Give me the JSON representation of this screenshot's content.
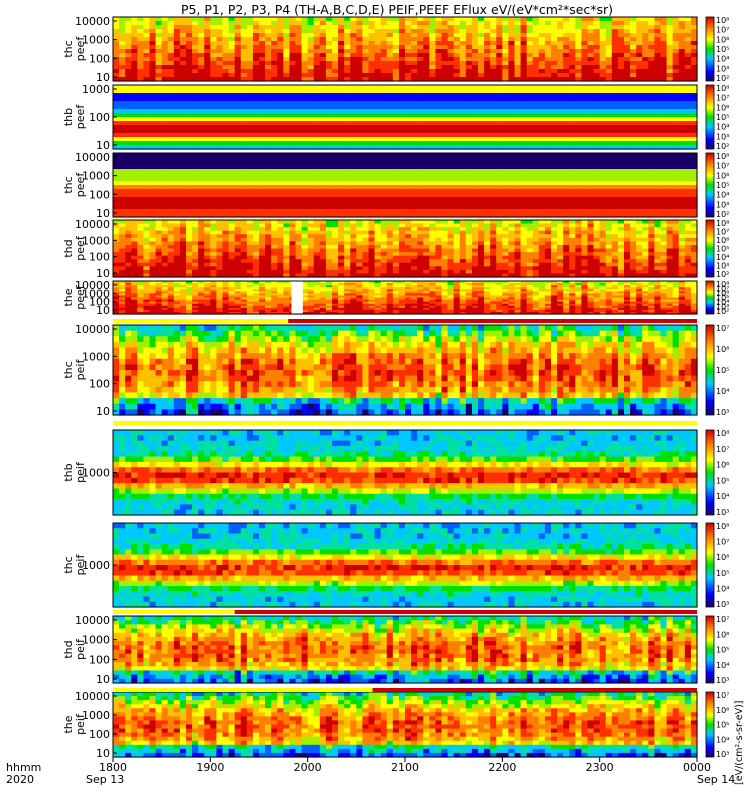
{
  "title": "P5, P1, P2, P3, P4 (TH-A,B,C,D,E) PEIF,PEEF EFlux eV/(eV*cm²*sec*sr)",
  "footer": {
    "row1_label": "hhmm",
    "row2_label": "2020",
    "times": [
      "1800",
      "1900",
      "2000",
      "2100",
      "2200",
      "2300",
      "0000"
    ],
    "start_date": "Sep 13",
    "end_date": "Sep 14"
  },
  "colorbar_caption": "[eV/(cm²-s-sr-eV)]",
  "chart_data": {
    "type": "heatmap",
    "x_range": [
      "2020-09-13 18:00",
      "2020-09-14 00:00"
    ],
    "panels": [
      {
        "id": "thc-peef",
        "ylabel": [
          "thc",
          "peef"
        ],
        "yticks": [
          "10000",
          "1000",
          "100",
          "10"
        ],
        "cbar_ticks": [
          "10⁸",
          "10⁷",
          "10⁶",
          "10⁵",
          "10⁴",
          "10³",
          "10²"
        ],
        "pattern": "electron-active"
      },
      {
        "id": "thb-peef",
        "ylabel": [
          "thb",
          "peef"
        ],
        "yticks": [
          "1000",
          "100",
          "10"
        ],
        "cbar_ticks": [
          "10⁸",
          "10⁷",
          "10⁶",
          "10⁵",
          "10⁴",
          "10³",
          "10²"
        ],
        "pattern": "banded"
      },
      {
        "id": "thc-peef-2",
        "ylabel": [
          "thc",
          "peef"
        ],
        "yticks": [
          "10000",
          "1000",
          "100",
          "10"
        ],
        "cbar_ticks": [
          "10⁸",
          "10⁷",
          "10⁶",
          "10⁵",
          "10⁴",
          "10³",
          "10²"
        ],
        "pattern": "banded-low"
      },
      {
        "id": "thd-peef",
        "ylabel": [
          "thd",
          "peef"
        ],
        "yticks": [
          "10000",
          "1000",
          "100",
          "10"
        ],
        "cbar_ticks": [
          "10⁸",
          "10⁷",
          "10⁶",
          "10⁵",
          "10⁴",
          "10³",
          "10²"
        ],
        "pattern": "electron-active"
      },
      {
        "id": "the-peef",
        "ylabel": [
          "the",
          "peef"
        ],
        "yticks": [
          "10000",
          "1000",
          "100",
          "10"
        ],
        "cbar_ticks": [
          "10⁸",
          "10⁷",
          "10⁶",
          "10⁵",
          "10⁴",
          "10³",
          "10²"
        ],
        "pattern": "electron-active",
        "gap": [
          "19:50",
          "19:57"
        ]
      },
      {
        "id": "thc-peif",
        "ylabel": [
          "thc",
          "peif"
        ],
        "yticks": [
          "10000",
          "1000",
          "100",
          "10"
        ],
        "cbar_ticks": [
          "10⁷",
          "10⁶",
          "10⁵",
          "10⁴",
          "10³"
        ],
        "pattern": "ion-active"
      },
      {
        "id": "thb-peif",
        "ylabel": [
          "thb",
          "peif"
        ],
        "yticks": [
          "1000"
        ],
        "cbar_ticks": [
          "10⁸",
          "10⁷",
          "10⁶",
          "10⁵",
          "10⁴",
          "10³"
        ],
        "pattern": "ion-banded"
      },
      {
        "id": "thc-peif-2",
        "ylabel": [
          "thc",
          "peif"
        ],
        "yticks": [
          "1000"
        ],
        "cbar_ticks": [
          "10⁸",
          "10⁷",
          "10⁶",
          "10⁵",
          "10⁴",
          "10³"
        ],
        "pattern": "ion-banded"
      },
      {
        "id": "thd-peif",
        "ylabel": [
          "thd",
          "peif"
        ],
        "yticks": [
          "10000",
          "1000",
          "100",
          "10"
        ],
        "cbar_ticks": [
          "10⁷",
          "10⁶",
          "10⁵",
          "10⁴",
          "10³"
        ],
        "pattern": "ion-active"
      },
      {
        "id": "the-peif",
        "ylabel": [
          "the",
          "peif"
        ],
        "yticks": [
          "10000",
          "1000",
          "100",
          "10"
        ],
        "cbar_ticks": [
          "10⁷",
          "10⁶",
          "10⁵",
          "10⁴",
          "10³"
        ],
        "pattern": "ion-active"
      }
    ],
    "mode_bars": [
      {
        "after_panel": "the-peef",
        "red_from": "19:48",
        "red_to": "24:00"
      },
      {
        "after_panel": "thc-peif",
        "red_from": "24:00",
        "red_to": "24:00"
      },
      {
        "after_panel": "thc-peif-2",
        "red_from": "19:15",
        "red_to": "24:00"
      },
      {
        "after_panel": "thd-peif",
        "red_from": "20:40",
        "red_to": "24:00"
      }
    ],
    "colors": {
      "high": "#cc0000",
      "mid": "#ffff00",
      "low": "#0000cc",
      "none": "#ffffff"
    }
  }
}
